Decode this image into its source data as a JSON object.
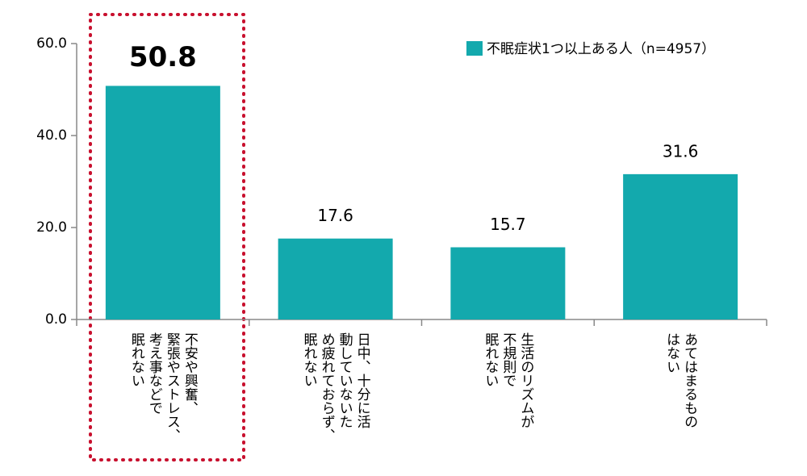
{
  "chart_data": {
    "type": "bar",
    "categories": [
      "不安や興奮、\n緊張やストレス、\n考え事などで\n眠れない",
      "日中、十分に活\n動していないた\nめ疲れておらず、\n眠れない",
      "生活のリズムが\n不規則で\n眠れない",
      "あてはまるもの\nはない"
    ],
    "series": [
      {
        "name": "不眠症状1つ以上ある人（n=4957）",
        "color": "#13a9ad",
        "values": [
          50.8,
          17.6,
          15.7,
          31.6
        ]
      }
    ],
    "ylim": [
      0,
      60
    ],
    "yticks": [
      {
        "value": 0,
        "label": "0.0"
      },
      {
        "value": 20,
        "label": "20.0"
      },
      {
        "value": 40,
        "label": "40.0"
      },
      {
        "value": 60,
        "label": "60.0"
      }
    ],
    "legend": "top-right"
  }
}
